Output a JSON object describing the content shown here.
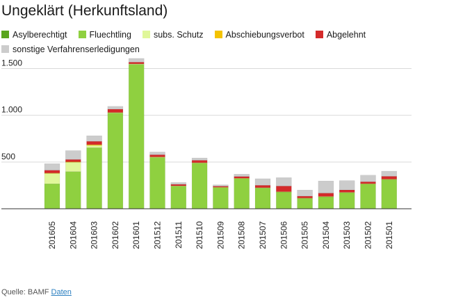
{
  "page_title": "Ungeklärt (Herkunftsland)",
  "source": {
    "label": "Quelle: BAMF",
    "link_text": "Daten"
  },
  "chart_data": {
    "type": "bar",
    "stacked": true,
    "title": "Ungeklärt (Herkunftsland)",
    "xlabel": "",
    "ylabel": "",
    "ylim": [
      0,
      1600
    ],
    "yticks": [
      500,
      1000,
      1500
    ],
    "ytick_labels": [
      "500",
      "1.000",
      "1.500"
    ],
    "grid": true,
    "legend_position": "top",
    "categories": [
      "201605",
      "201604",
      "201603",
      "201602",
      "201601",
      "201512",
      "201511",
      "201510",
      "201509",
      "201508",
      "201507",
      "201506",
      "201505",
      "201504",
      "201503",
      "201502",
      "201501"
    ],
    "series": [
      {
        "name": "Asylberechtigt",
        "color": "#5aa51e",
        "values": [
          2,
          2,
          3,
          3,
          3,
          2,
          1,
          2,
          1,
          2,
          2,
          1,
          1,
          2,
          2,
          2,
          2
        ]
      },
      {
        "name": "Fluechtling",
        "color": "#8fd040",
        "values": [
          265,
          395,
          650,
          1020,
          1540,
          545,
          240,
          485,
          225,
          320,
          220,
          178,
          110,
          125,
          170,
          262,
          310
        ]
      },
      {
        "name": "subs. Schutz",
        "color": "#e0f79a",
        "values": [
          110,
          100,
          25,
          5,
          5,
          5,
          3,
          3,
          2,
          2,
          2,
          2,
          2,
          2,
          2,
          2,
          2
        ]
      },
      {
        "name": "Abschiebungsverbot",
        "color": "#f4c300",
        "values": [
          5,
          5,
          8,
          2,
          2,
          3,
          2,
          3,
          3,
          3,
          2,
          2,
          2,
          3,
          2,
          3,
          3
        ]
      },
      {
        "name": "Abgelehnt",
        "color": "#d42a2a",
        "values": [
          30,
          25,
          35,
          35,
          18,
          22,
          15,
          25,
          10,
          18,
          25,
          60,
          20,
          35,
          25,
          20,
          30
        ]
      },
      {
        "name": "sonstige Verfahrenserledigungen",
        "color": "#cccccc",
        "values": [
          70,
          95,
          60,
          30,
          40,
          30,
          20,
          25,
          15,
          25,
          70,
          90,
          65,
          130,
          100,
          70,
          55
        ]
      }
    ]
  }
}
